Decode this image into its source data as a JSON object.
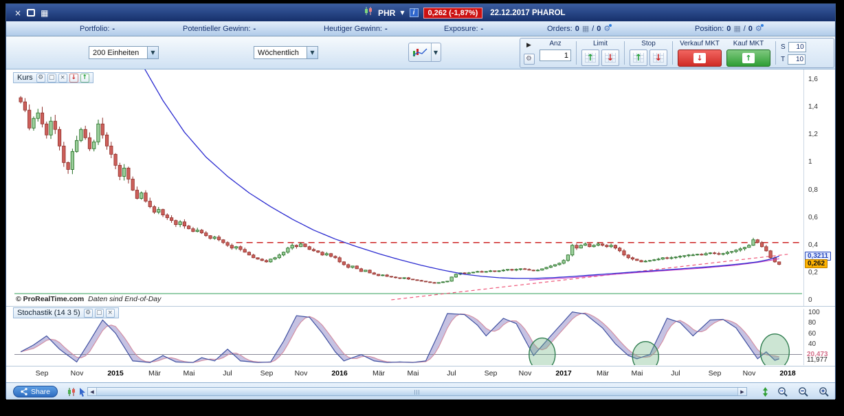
{
  "titlebar": {
    "symbol": "PHR",
    "price_badge": "0,262 (-1,87%)",
    "title": "22.12.2017 PHAROL"
  },
  "statsbar": {
    "items": [
      {
        "label": "Portfolio:",
        "value": "-"
      },
      {
        "label": "Potentieller Gewinn:",
        "value": "-"
      },
      {
        "label": "Heutiger Gewinn:",
        "value": "-"
      },
      {
        "label": "Exposure:",
        "value": "-"
      }
    ],
    "orders_label": "Orders:",
    "orders_count": "0",
    "orders_slash": "/",
    "orders_count2": "0",
    "position_label": "Position:",
    "position_count": "0",
    "position_slash": "/",
    "position_count2": "0"
  },
  "toolbar": {
    "units_select": "200 Einheiten",
    "timeframe_select": "Wöchentlich",
    "qty_label": "Anz",
    "qty_value": "1",
    "limit_label": "Limit",
    "stop_label": "Stop",
    "sell_market_label": "Verkauf MKT",
    "buy_market_label": "Kauf MKT",
    "stop_loss_label": "S",
    "stop_loss_value": "10",
    "take_profit_label": "T",
    "take_profit_value": "10"
  },
  "price_panel": {
    "title": "Kurs",
    "copyright_bold": "© ProRealTime.com",
    "copyright_note": "Daten sind End-of-Day"
  },
  "stoch_panel": {
    "title": "Stochastik (14 3 5)"
  },
  "bottombar": {
    "share_label": "Share"
  },
  "chart_data": {
    "type": "candlestick",
    "timeframe": "weekly",
    "instrument": "PHAROL",
    "first_open": 1.47,
    "closes": [
      1.44,
      1.38,
      1.25,
      1.32,
      1.36,
      1.28,
      1.2,
      1.3,
      1.24,
      1.12,
      1.0,
      0.95,
      1.08,
      1.16,
      1.24,
      1.18,
      1.1,
      1.15,
      1.28,
      1.2,
      1.12,
      1.06,
      0.98,
      0.9,
      0.96,
      0.88,
      0.8,
      0.74,
      0.78,
      0.72,
      0.68,
      0.64,
      0.66,
      0.62,
      0.6,
      0.58,
      0.55,
      0.57,
      0.54,
      0.52,
      0.5,
      0.51,
      0.49,
      0.47,
      0.45,
      0.46,
      0.44,
      0.42,
      0.4,
      0.38,
      0.39,
      0.37,
      0.35,
      0.33,
      0.31,
      0.3,
      0.29,
      0.28,
      0.3,
      0.31,
      0.33,
      0.35,
      0.38,
      0.4,
      0.39,
      0.41,
      0.39,
      0.37,
      0.36,
      0.35,
      0.33,
      0.34,
      0.32,
      0.31,
      0.28,
      0.26,
      0.24,
      0.25,
      0.23,
      0.21,
      0.22,
      0.2,
      0.19,
      0.18,
      0.185,
      0.175,
      0.17,
      0.165,
      0.16,
      0.165,
      0.155,
      0.15,
      0.145,
      0.14,
      0.135,
      0.13,
      0.125,
      0.13,
      0.135,
      0.14,
      0.17,
      0.19,
      0.2,
      0.195,
      0.2,
      0.205,
      0.21,
      0.205,
      0.21,
      0.215,
      0.21,
      0.215,
      0.22,
      0.225,
      0.22,
      0.225,
      0.23,
      0.225,
      0.22,
      0.215,
      0.22,
      0.23,
      0.24,
      0.25,
      0.26,
      0.27,
      0.29,
      0.33,
      0.4,
      0.38,
      0.4,
      0.41,
      0.39,
      0.4,
      0.41,
      0.4,
      0.39,
      0.4,
      0.38,
      0.36,
      0.33,
      0.31,
      0.3,
      0.29,
      0.28,
      0.285,
      0.29,
      0.295,
      0.3,
      0.31,
      0.305,
      0.31,
      0.315,
      0.32,
      0.325,
      0.33,
      0.33,
      0.335,
      0.33,
      0.34,
      0.345,
      0.34,
      0.335,
      0.34,
      0.35,
      0.355,
      0.365,
      0.375,
      0.385,
      0.4,
      0.44,
      0.42,
      0.39,
      0.36,
      0.31,
      0.28,
      0.262
    ],
    "last_close": 0.262,
    "ma_blue_anchors": [
      [
        28,
        1.72
      ],
      [
        33,
        1.45
      ],
      [
        38,
        1.22
      ],
      [
        43,
        1.04
      ],
      [
        48,
        0.9
      ],
      [
        53,
        0.78
      ],
      [
        58,
        0.68
      ],
      [
        63,
        0.59
      ],
      [
        68,
        0.51
      ],
      [
        73,
        0.445
      ],
      [
        78,
        0.39
      ],
      [
        83,
        0.34
      ],
      [
        88,
        0.295
      ],
      [
        93,
        0.255
      ],
      [
        98,
        0.22
      ],
      [
        103,
        0.19
      ],
      [
        107,
        0.175
      ],
      [
        111,
        0.165
      ],
      [
        115,
        0.16
      ],
      [
        119,
        0.16
      ],
      [
        123,
        0.165
      ],
      [
        127,
        0.172
      ],
      [
        131,
        0.181
      ],
      [
        135,
        0.19
      ],
      [
        139,
        0.199
      ],
      [
        143,
        0.208
      ],
      [
        147,
        0.216
      ],
      [
        151,
        0.225
      ],
      [
        155,
        0.234
      ],
      [
        159,
        0.243
      ],
      [
        163,
        0.253
      ],
      [
        167,
        0.265
      ],
      [
        171,
        0.28
      ],
      [
        174,
        0.3
      ],
      [
        176,
        0.3211
      ]
    ],
    "ma_blue_last": 0.3211,
    "ma_magenta_anchors": [
      [
        118,
        0.148
      ],
      [
        126,
        0.162
      ],
      [
        134,
        0.18
      ],
      [
        142,
        0.2
      ],
      [
        150,
        0.217
      ],
      [
        158,
        0.234
      ],
      [
        166,
        0.256
      ],
      [
        171,
        0.276
      ],
      [
        176,
        0.302
      ]
    ],
    "trendline_anchors": [
      [
        86,
        0.005
      ],
      [
        178,
        0.335
      ]
    ],
    "resistance_line": {
      "start_i": 50,
      "value": 0.42
    },
    "support_line": {
      "value": 0.05
    },
    "price_axis": {
      "ticks": [
        {
          "t": "1,6",
          "v": 1.6
        },
        {
          "t": "1,4",
          "v": 1.4
        },
        {
          "t": "1,2",
          "v": 1.2
        },
        {
          "t": "1",
          "v": 1.0
        },
        {
          "t": "0,8",
          "v": 0.8
        },
        {
          "t": "0,6",
          "v": 0.6
        },
        {
          "t": "0,4",
          "v": 0.4
        },
        {
          "t": "0,2",
          "v": 0.2
        },
        {
          "t": "0",
          "v": 0
        }
      ],
      "marker_blue": {
        "t": "0,3211",
        "v": 0.3211
      },
      "marker_yellow": {
        "t": "0,262",
        "v": 0.262
      }
    },
    "x_axis_ticks": [
      {
        "t": "Sep",
        "i": 5
      },
      {
        "t": "Nov",
        "i": 13
      },
      {
        "t": "2015",
        "i": 22,
        "b": 1
      },
      {
        "t": "Mär",
        "i": 31
      },
      {
        "t": "Mai",
        "i": 39
      },
      {
        "t": "Jul",
        "i": 48
      },
      {
        "t": "Sep",
        "i": 57
      },
      {
        "t": "Nov",
        "i": 65
      },
      {
        "t": "2016",
        "i": 74,
        "b": 1
      },
      {
        "t": "Mär",
        "i": 83
      },
      {
        "t": "Mai",
        "i": 91
      },
      {
        "t": "Jul",
        "i": 100
      },
      {
        "t": "Sep",
        "i": 109
      },
      {
        "t": "Nov",
        "i": 117
      },
      {
        "t": "2017",
        "i": 126,
        "b": 1
      },
      {
        "t": "Mär",
        "i": 135
      },
      {
        "t": "Mai",
        "i": 143
      },
      {
        "t": "Jul",
        "i": 152
      },
      {
        "t": "Sep",
        "i": 161
      },
      {
        "t": "Nov",
        "i": 169
      },
      {
        "t": "2018",
        "i": 178,
        "b": 1
      }
    ],
    "stochastic": {
      "k_anchors": [
        [
          0,
          25
        ],
        [
          3,
          38
        ],
        [
          6,
          55
        ],
        [
          9,
          30
        ],
        [
          13,
          6
        ],
        [
          16,
          45
        ],
        [
          19,
          85
        ],
        [
          22,
          60
        ],
        [
          26,
          8
        ],
        [
          30,
          5
        ],
        [
          33,
          18
        ],
        [
          36,
          6
        ],
        [
          40,
          5
        ],
        [
          42,
          14
        ],
        [
          45,
          8
        ],
        [
          48,
          30
        ],
        [
          51,
          8
        ],
        [
          55,
          5
        ],
        [
          58,
          6
        ],
        [
          61,
          45
        ],
        [
          64,
          93
        ],
        [
          67,
          90
        ],
        [
          70,
          60
        ],
        [
          73,
          25
        ],
        [
          75,
          8
        ],
        [
          79,
          20
        ],
        [
          82,
          8
        ],
        [
          85,
          5
        ],
        [
          88,
          6
        ],
        [
          91,
          5
        ],
        [
          94,
          8
        ],
        [
          97,
          60
        ],
        [
          99,
          97
        ],
        [
          103,
          95
        ],
        [
          106,
          75
        ],
        [
          108,
          55
        ],
        [
          112,
          88
        ],
        [
          115,
          78
        ],
        [
          119,
          18
        ],
        [
          123,
          55
        ],
        [
          128,
          100
        ],
        [
          131,
          96
        ],
        [
          135,
          70
        ],
        [
          138,
          40
        ],
        [
          141,
          18
        ],
        [
          143,
          12
        ],
        [
          146,
          20
        ],
        [
          150,
          88
        ],
        [
          153,
          80
        ],
        [
          156,
          55
        ],
        [
          160,
          85
        ],
        [
          163,
          86
        ],
        [
          166,
          70
        ],
        [
          169,
          35
        ],
        [
          171,
          12
        ],
        [
          173,
          25
        ],
        [
          175,
          9
        ],
        [
          176,
          11.977
        ]
      ],
      "y_ticks": [
        {
          "t": "100",
          "v": 100
        },
        {
          "t": "80",
          "v": 80
        },
        {
          "t": "60",
          "v": 60
        },
        {
          "t": "40",
          "v": 40
        }
      ],
      "marker_pink": {
        "t": "20,473",
        "v": 20.473
      },
      "marker_dark": {
        "t": "11,977",
        "v": 11.977
      },
      "level_line": 20,
      "circles": [
        {
          "i": 121,
          "v": 20,
          "rx": 19,
          "ry": 24
        },
        {
          "i": 145,
          "v": 16,
          "rx": 19,
          "ry": 22
        },
        {
          "i": 175,
          "v": 25,
          "rx": 21,
          "ry": 26
        }
      ]
    },
    "colors": {
      "up_fill": "#9ccf9c",
      "up_stroke": "#1e6b1e",
      "down_fill": "#cc5f5a",
      "down_stroke": "#8f2f2a",
      "ma_blue": "#2a2ad0",
      "ma_magenta": "#c030c0",
      "resistance": "#cc2222",
      "trendline": "#ee5577",
      "support": "#2e9e55",
      "stoch_k": "#3d4fa0",
      "stoch_d": "#d48a9e",
      "stoch_area": "rgba(120,110,185,0.42)",
      "circle_stroke": "#2f7d4f",
      "circle_fill": "rgba(110,180,130,0.35)"
    }
  }
}
